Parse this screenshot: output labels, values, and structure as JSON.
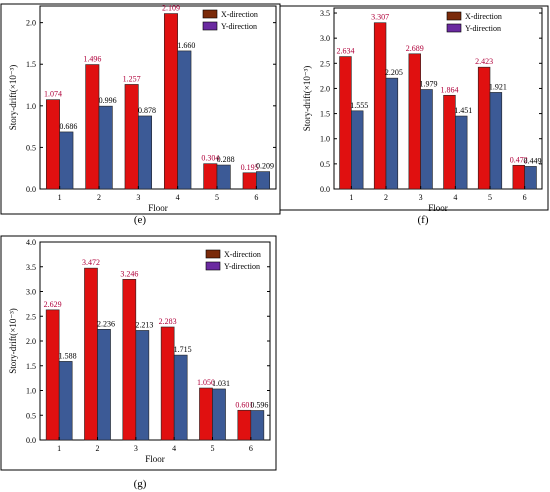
{
  "colors": {
    "x_bar": "#e01010",
    "y_bar": "#3c5a96",
    "x_legend": "#7a2a0a",
    "y_legend": "#6a2aa0"
  },
  "chart_data": [
    {
      "panel": "(e)",
      "type": "bar",
      "categories": [
        "1",
        "2",
        "3",
        "4",
        "5",
        "6"
      ],
      "series": [
        {
          "name": "X-direction",
          "values": [
            1.074,
            1.496,
            1.257,
            2.109,
            0.304,
            0.195
          ]
        },
        {
          "name": "Y-direction",
          "values": [
            0.686,
            0.996,
            0.878,
            1.66,
            0.288,
            0.209
          ]
        }
      ],
      "value_labels": {
        "x": [
          "1.074",
          "1.496",
          "1.257",
          "2.109",
          "0.304",
          "0.195"
        ],
        "y": [
          "0.686",
          "0.996",
          "0.878",
          "1.660",
          "0.288",
          "0.209"
        ]
      },
      "xlabel": "Floor",
      "ylabel": "Story-drift(×10⁻³)",
      "ylim": [
        0,
        2.2
      ],
      "yticks": [
        "0.0",
        "0.5",
        "1.0",
        "1.5",
        "2.0"
      ],
      "legend": "top-right"
    },
    {
      "panel": "(f)",
      "type": "bar",
      "categories": [
        "1",
        "2",
        "3",
        "4",
        "5",
        "6"
      ],
      "series": [
        {
          "name": "X-direction",
          "values": [
            2.634,
            3.307,
            2.689,
            1.864,
            2.423,
            0.472
          ]
        },
        {
          "name": "Y-direction",
          "values": [
            1.555,
            2.205,
            1.979,
            1.451,
            1.921,
            0.449
          ]
        }
      ],
      "value_labels": {
        "x": [
          "2.634",
          "3.307",
          "2.689",
          "1.864",
          "2.423",
          "0.472"
        ],
        "y": [
          "1.555",
          "2.205",
          "1.979",
          "1.451",
          "1.921",
          "0.449"
        ]
      },
      "xlabel": "Floor",
      "ylabel": "Story-drift(×10⁻³)",
      "ylim": [
        0,
        3.6
      ],
      "yticks": [
        "0.0",
        "0.5",
        "1.0",
        "1.5",
        "2.0",
        "2.5",
        "3.0",
        "3.5"
      ],
      "legend": "top-right"
    },
    {
      "panel": "(g)",
      "type": "bar",
      "categories": [
        "1",
        "2",
        "3",
        "4",
        "5",
        "6"
      ],
      "series": [
        {
          "name": "X-direction",
          "values": [
            2.629,
            3.472,
            3.246,
            2.283,
            1.05,
            0.601
          ]
        },
        {
          "name": "Y-direction",
          "values": [
            1.588,
            2.236,
            2.213,
            1.715,
            1.031,
            0.596
          ]
        }
      ],
      "value_labels": {
        "x": [
          "2.629",
          "3.472",
          "3.246",
          "2.283",
          "1.050",
          "0.601"
        ],
        "y": [
          "1.588",
          "2.236",
          "2.213",
          "1.715",
          "1.031",
          "0.596"
        ]
      },
      "xlabel": "Floor",
      "ylabel": "Story-drift(×10⁻³)",
      "ylim": [
        0,
        4.0
      ],
      "yticks": [
        "0.0",
        "0.5",
        "1.0",
        "1.5",
        "2.0",
        "2.5",
        "3.0",
        "3.5",
        "4.0"
      ],
      "legend": "top-right"
    }
  ]
}
